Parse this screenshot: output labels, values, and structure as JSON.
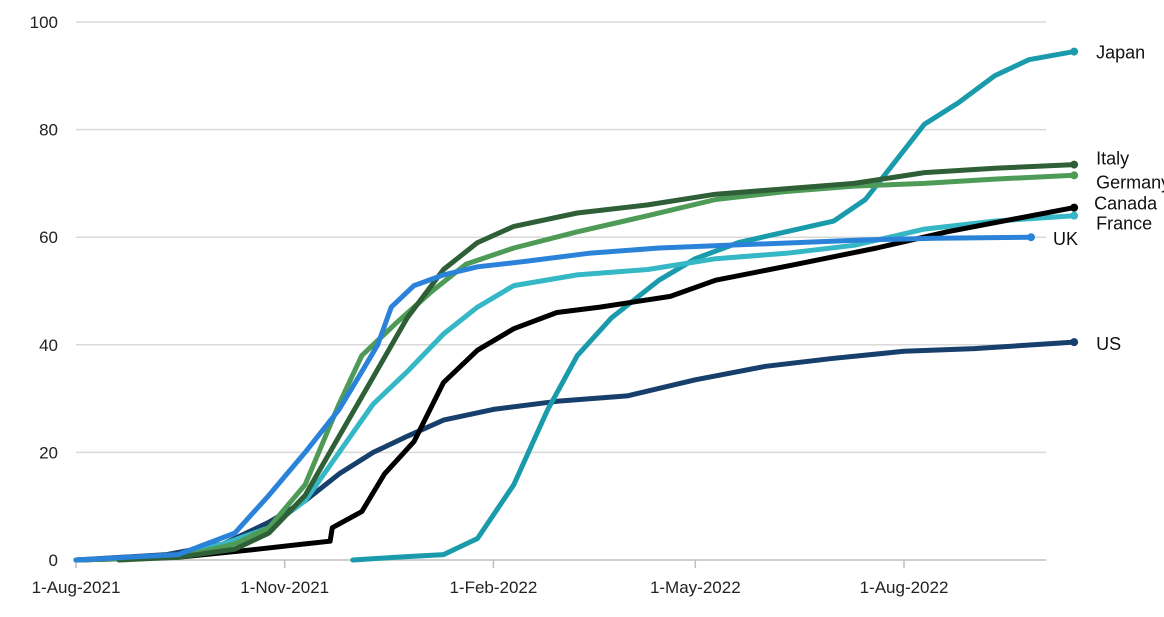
{
  "chart_data": {
    "type": "line",
    "title": "",
    "xlabel": "",
    "ylabel": "",
    "ylim": [
      0,
      100
    ],
    "xlim": [
      "2021-08-01",
      "2022-10-15"
    ],
    "grid": true,
    "legend": "direct labels at line ends",
    "y_ticks": [
      "0",
      "20",
      "40",
      "60",
      "80",
      "100"
    ],
    "x_ticks": [
      {
        "date": "2021-08-01",
        "label": "1-Aug-2021"
      },
      {
        "date": "2021-11-01",
        "label": "1-Nov-2021"
      },
      {
        "date": "2022-02-01",
        "label": "1-Feb-2022"
      },
      {
        "date": "2022-05-01",
        "label": "1-May-2022"
      },
      {
        "date": "2022-08-01",
        "label": "1-Aug-2022"
      }
    ],
    "series": [
      {
        "name": "Japan",
        "color": "#1a9bab",
        "points": [
          [
            "2021-12-01",
            0
          ],
          [
            "2021-12-20",
            0.5
          ],
          [
            "2022-01-10",
            1
          ],
          [
            "2022-01-25",
            4
          ],
          [
            "2022-02-10",
            14
          ],
          [
            "2022-02-25",
            28
          ],
          [
            "2022-03-10",
            38
          ],
          [
            "2022-03-25",
            45
          ],
          [
            "2022-04-15",
            52
          ],
          [
            "2022-05-01",
            56
          ],
          [
            "2022-05-20",
            59
          ],
          [
            "2022-06-10",
            61
          ],
          [
            "2022-07-01",
            63
          ],
          [
            "2022-07-15",
            67
          ],
          [
            "2022-07-28",
            74
          ],
          [
            "2022-08-10",
            81
          ],
          [
            "2022-08-25",
            85
          ],
          [
            "2022-09-10",
            90
          ],
          [
            "2022-09-25",
            93
          ],
          [
            "2022-10-15",
            94.5
          ]
        ]
      },
      {
        "name": "Italy",
        "color": "#2f5f36",
        "points": [
          [
            "2021-08-20",
            0
          ],
          [
            "2021-09-15",
            0.5
          ],
          [
            "2021-10-10",
            2
          ],
          [
            "2021-10-25",
            5
          ],
          [
            "2021-11-10",
            12
          ],
          [
            "2021-11-25",
            23
          ],
          [
            "2021-12-10",
            34
          ],
          [
            "2021-12-25",
            45
          ],
          [
            "2022-01-10",
            54
          ],
          [
            "2022-01-25",
            59
          ],
          [
            "2022-02-10",
            62
          ],
          [
            "2022-03-10",
            64.5
          ],
          [
            "2022-04-10",
            66
          ],
          [
            "2022-05-10",
            68
          ],
          [
            "2022-06-10",
            69
          ],
          [
            "2022-07-10",
            70
          ],
          [
            "2022-08-10",
            72
          ],
          [
            "2022-09-10",
            72.8
          ],
          [
            "2022-10-15",
            73.5
          ]
        ]
      },
      {
        "name": "Germany",
        "color": "#4e9a57",
        "points": [
          [
            "2021-08-01",
            0
          ],
          [
            "2021-09-15",
            0.5
          ],
          [
            "2021-10-10",
            3
          ],
          [
            "2021-10-25",
            6
          ],
          [
            "2021-11-10",
            14
          ],
          [
            "2021-11-25",
            29
          ],
          [
            "2021-12-05",
            38
          ],
          [
            "2021-12-20",
            44
          ],
          [
            "2022-01-05",
            50
          ],
          [
            "2022-01-20",
            55
          ],
          [
            "2022-02-10",
            58
          ],
          [
            "2022-03-10",
            61
          ],
          [
            "2022-04-10",
            64
          ],
          [
            "2022-05-10",
            67
          ],
          [
            "2022-06-10",
            68.5
          ],
          [
            "2022-07-10",
            69.5
          ],
          [
            "2022-08-10",
            70
          ],
          [
            "2022-09-10",
            70.8
          ],
          [
            "2022-10-15",
            71.5
          ]
        ]
      },
      {
        "name": "Canada",
        "color": "#000000",
        "points": [
          [
            "2021-08-01",
            0
          ],
          [
            "2021-09-15",
            0.5
          ],
          [
            "2021-10-20",
            2
          ],
          [
            "2021-11-10",
            3
          ],
          [
            "2021-11-21",
            3.5
          ],
          [
            "2021-11-22",
            6
          ],
          [
            "2021-12-05",
            9
          ],
          [
            "2021-12-15",
            16
          ],
          [
            "2021-12-28",
            22
          ],
          [
            "2022-01-10",
            33
          ],
          [
            "2022-01-25",
            39
          ],
          [
            "2022-02-10",
            43
          ],
          [
            "2022-03-01",
            46
          ],
          [
            "2022-03-20",
            47
          ],
          [
            "2022-04-20",
            49
          ],
          [
            "2022-05-10",
            52
          ],
          [
            "2022-06-15",
            55
          ],
          [
            "2022-07-20",
            58
          ],
          [
            "2022-08-20",
            61
          ],
          [
            "2022-10-15",
            65.5
          ]
        ]
      },
      {
        "name": "France",
        "color": "#35b7c6",
        "points": [
          [
            "2021-08-01",
            0
          ],
          [
            "2021-09-10",
            0.5
          ],
          [
            "2021-10-05",
            3
          ],
          [
            "2021-10-25",
            6
          ],
          [
            "2021-11-10",
            11
          ],
          [
            "2021-11-25",
            20
          ],
          [
            "2021-12-10",
            29
          ],
          [
            "2021-12-25",
            35
          ],
          [
            "2022-01-10",
            42
          ],
          [
            "2022-01-25",
            47
          ],
          [
            "2022-02-10",
            51
          ],
          [
            "2022-03-10",
            53
          ],
          [
            "2022-04-10",
            54
          ],
          [
            "2022-05-10",
            56
          ],
          [
            "2022-06-10",
            57
          ],
          [
            "2022-07-10",
            58.5
          ],
          [
            "2022-08-10",
            61.5
          ],
          [
            "2022-09-10",
            63
          ],
          [
            "2022-10-15",
            64
          ]
        ]
      },
      {
        "name": "UK",
        "color": "#2b83d9",
        "points": [
          [
            "2021-08-01",
            0
          ],
          [
            "2021-09-15",
            1
          ],
          [
            "2021-10-10",
            5
          ],
          [
            "2021-10-25",
            12
          ],
          [
            "2021-11-10",
            20
          ],
          [
            "2021-11-25",
            28
          ],
          [
            "2021-12-05",
            35
          ],
          [
            "2021-12-12",
            40
          ],
          [
            "2021-12-18",
            47
          ],
          [
            "2021-12-28",
            51
          ],
          [
            "2022-01-10",
            53
          ],
          [
            "2022-01-25",
            54.5
          ],
          [
            "2022-02-15",
            55.5
          ],
          [
            "2022-03-15",
            57
          ],
          [
            "2022-04-15",
            58
          ],
          [
            "2022-05-15",
            58.5
          ],
          [
            "2022-06-15",
            59
          ],
          [
            "2022-07-15",
            59.5
          ],
          [
            "2022-08-15",
            59.8
          ],
          [
            "2022-09-26",
            60
          ]
        ]
      },
      {
        "name": "US",
        "color": "#173f6b",
        "points": [
          [
            "2021-08-01",
            0
          ],
          [
            "2021-09-10",
            1
          ],
          [
            "2021-10-05",
            3
          ],
          [
            "2021-10-25",
            7
          ],
          [
            "2021-11-10",
            11
          ],
          [
            "2021-11-25",
            16
          ],
          [
            "2021-12-10",
            20
          ],
          [
            "2021-12-25",
            23
          ],
          [
            "2022-01-10",
            26
          ],
          [
            "2022-02-01",
            28
          ],
          [
            "2022-03-01",
            29.5
          ],
          [
            "2022-04-01",
            30.5
          ],
          [
            "2022-05-01",
            33.5
          ],
          [
            "2022-06-01",
            36
          ],
          [
            "2022-07-01",
            37.5
          ],
          [
            "2022-08-01",
            38.8
          ],
          [
            "2022-09-01",
            39.3
          ],
          [
            "2022-10-15",
            40.5
          ]
        ]
      }
    ]
  }
}
